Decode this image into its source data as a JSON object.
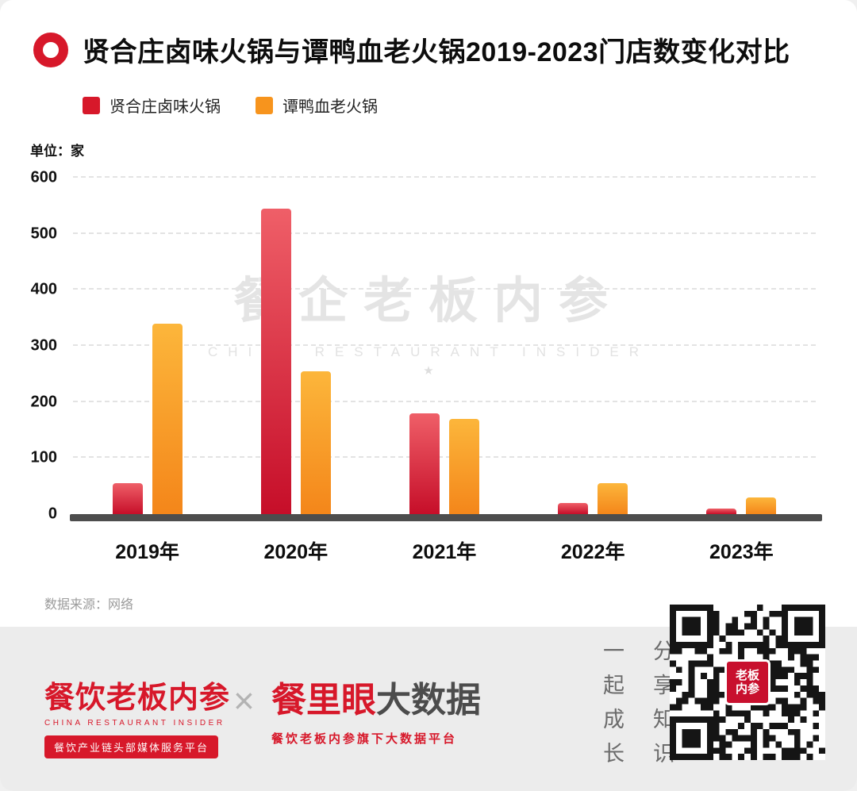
{
  "page": {
    "title": "贤合庄卤味火锅与谭鸭血老火锅2019-2023门店数变化对比",
    "unit_label": "单位：家",
    "source": "数据来源：网络"
  },
  "watermark": {
    "cn": "餐企老板内参",
    "en": "CHINA RESTAURANT INSIDER",
    "star": "★"
  },
  "chart_data": {
    "type": "bar",
    "title": "贤合庄卤味火锅与谭鸭血老火锅2019-2023门店数变化对比",
    "unit": "家",
    "categories": [
      "2019年",
      "2020年",
      "2021年",
      "2022年",
      "2023年"
    ],
    "series": [
      {
        "name": "贤合庄卤味火锅",
        "color": "#d7182a",
        "values": [
          55,
          545,
          180,
          20,
          10
        ]
      },
      {
        "name": "谭鸭血老火锅",
        "color": "#f7941d",
        "values": [
          340,
          255,
          170,
          55,
          30
        ]
      }
    ],
    "ylim": [
      0,
      600
    ],
    "yticks": [
      0,
      100,
      200,
      300,
      400,
      500,
      600
    ],
    "grid": true,
    "legend_position": "top-left"
  },
  "footer": {
    "brand_left": {
      "name": "餐饮老板内参",
      "subtitle": "CHINA RESTAURANT INSIDER",
      "tagline": "餐饮产业链头部媒体服务平台"
    },
    "separator": "×",
    "brand_right": {
      "name_primary": "餐里眼",
      "name_secondary": "大数据",
      "tagline": "餐饮老板内参旗下大数据平台"
    },
    "slogans": [
      "一起成长",
      "分享知识"
    ],
    "qr_badge": [
      "老板",
      "内参"
    ]
  }
}
